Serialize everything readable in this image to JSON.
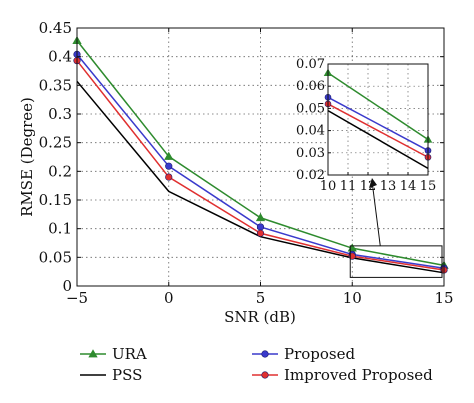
{
  "chart_data": {
    "type": "line",
    "title": "",
    "xlabel": "SNR (dB)",
    "ylabel": "RMSE (Degree)",
    "x": [
      -5,
      0,
      5,
      10,
      15
    ],
    "xlim": [
      -5,
      15
    ],
    "ylim": [
      0,
      0.45
    ],
    "x_ticks": [
      "−5",
      "0",
      "5",
      "10",
      "15"
    ],
    "y_ticks": [
      "0",
      "0.05",
      "0.1",
      "0.15",
      "0.2",
      "0.25",
      "0.3",
      "0.35",
      "0.4",
      "0.45"
    ],
    "grid": true,
    "legend_position": "bottom",
    "series": [
      {
        "name": "URA",
        "color": "#2e8b2e",
        "marker": "triangle",
        "values": [
          0.428,
          0.226,
          0.119,
          0.066,
          0.036
        ]
      },
      {
        "name": "PSS",
        "color": "#000000",
        "marker": "none",
        "values": [
          0.357,
          0.165,
          0.086,
          0.049,
          0.023
        ]
      },
      {
        "name": "Proposed",
        "color": "#3a3acc",
        "marker": "circle",
        "values": [
          0.404,
          0.209,
          0.103,
          0.055,
          0.031
        ]
      },
      {
        "name": "Improved Proposed",
        "color": "#e03030",
        "marker": "circle",
        "values": [
          0.393,
          0.19,
          0.092,
          0.052,
          0.028
        ]
      }
    ],
    "inset": {
      "xlim": [
        10,
        15
      ],
      "ylim": [
        0.02,
        0.07
      ],
      "x_ticks": [
        "10",
        "11",
        "12",
        "13",
        "14",
        "15"
      ],
      "y_ticks": [
        "0.02",
        "0.03",
        "0.04",
        "0.05",
        "0.06",
        "0.07"
      ],
      "zoom_region": {
        "x": [
          10,
          15
        ],
        "y": [
          0.015,
          0.07
        ]
      }
    }
  }
}
